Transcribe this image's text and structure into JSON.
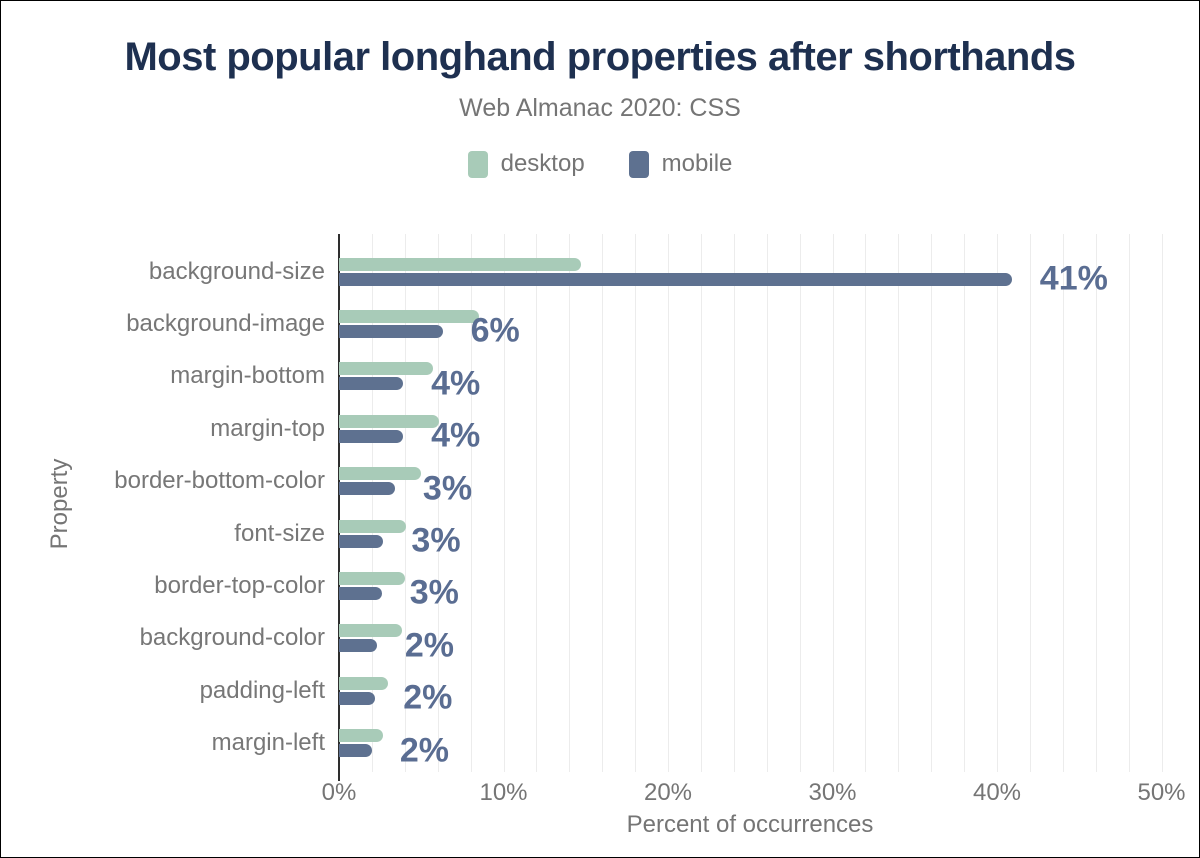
{
  "chart_data": {
    "type": "bar",
    "orientation": "horizontal",
    "title": "Most popular longhand properties after shorthands",
    "subtitle": "Web Almanac 2020: CSS",
    "xlabel": "Percent of occurrences",
    "ylabel": "Property",
    "xlim": [
      0,
      50
    ],
    "x_tick_step": 10,
    "x_gridline_step": 2,
    "x_ticks": [
      "0%",
      "10%",
      "20%",
      "30%",
      "40%",
      "50%"
    ],
    "grid": true,
    "legend_position": "top",
    "categories": [
      "background-size",
      "background-image",
      "margin-bottom",
      "margin-top",
      "border-bottom-color",
      "font-size",
      "border-top-color",
      "background-color",
      "padding-left",
      "margin-left"
    ],
    "series": [
      {
        "name": "desktop",
        "color": "#a8cbb8",
        "values": [
          14.7,
          8.5,
          5.7,
          6.1,
          5.0,
          4.1,
          4.0,
          3.8,
          3.0,
          2.7
        ]
      },
      {
        "name": "mobile",
        "color": "#5e7190",
        "values": [
          40.9,
          6.3,
          3.9,
          3.9,
          3.4,
          2.7,
          2.6,
          2.3,
          2.2,
          2.0
        ]
      }
    ],
    "value_labels": [
      "41%",
      "6%",
      "4%",
      "4%",
      "3%",
      "3%",
      "3%",
      "2%",
      "2%",
      "2%"
    ],
    "value_label_series": "mobile",
    "colors": {
      "title": "#1e3050",
      "muted_text": "#757575",
      "gridline": "#ececec",
      "axis_line": "#2e2e2e",
      "value_label": "#5a6d92"
    }
  }
}
